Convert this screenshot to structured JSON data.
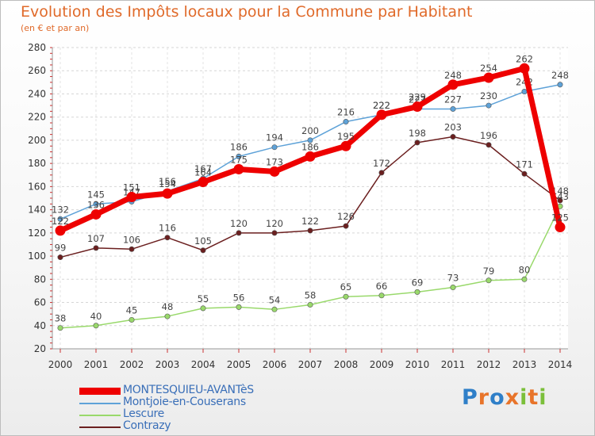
{
  "header": {
    "title": "Evolution des Impôts locaux pour la Commune par Habitant",
    "subtitle": "(en € et par an)"
  },
  "logo": {
    "chars": [
      "P",
      "r",
      "o",
      "x",
      "i",
      "t",
      "i"
    ],
    "colors": [
      "#2f7fc8",
      "#e8742a",
      "#2f7fc8",
      "#e8742a",
      "#7bbf3a",
      "#e8742a",
      "#7bbf3a"
    ]
  },
  "chart_data": {
    "type": "line",
    "x": [
      2000,
      2001,
      2002,
      2003,
      2004,
      2005,
      2006,
      2007,
      2008,
      2009,
      2010,
      2011,
      2012,
      2013,
      2014
    ],
    "ylim": [
      20,
      280
    ],
    "yticks": [
      20,
      40,
      60,
      80,
      100,
      120,
      140,
      160,
      180,
      200,
      220,
      240,
      260,
      280
    ],
    "grid": true,
    "legend_position": "bottom-left",
    "series": [
      {
        "name": "Contrazy",
        "color": "#6b1f1f",
        "values": [
          99,
          107,
          106,
          116,
          105,
          120,
          120,
          122,
          126,
          172,
          198,
          203,
          196,
          171,
          148
        ]
      },
      {
        "name": "Lescure",
        "color": "#99d96b",
        "values": [
          38,
          40,
          45,
          48,
          55,
          56,
          54,
          58,
          65,
          66,
          69,
          73,
          79,
          80,
          143
        ]
      },
      {
        "name": "Montjoie-en-Couserans",
        "color": "#5ea2d8",
        "values": [
          132,
          145,
          147,
          156,
          167,
          186,
          194,
          200,
          216,
          222,
          227,
          227,
          230,
          242,
          248
        ]
      },
      {
        "name": "MONTESQUIEU-AVANTèS",
        "color": "#ee0000",
        "values": [
          122,
          136,
          151,
          154,
          164,
          175,
          173,
          186,
          195,
          222,
          229,
          248,
          254,
          262,
          125
        ]
      }
    ]
  }
}
